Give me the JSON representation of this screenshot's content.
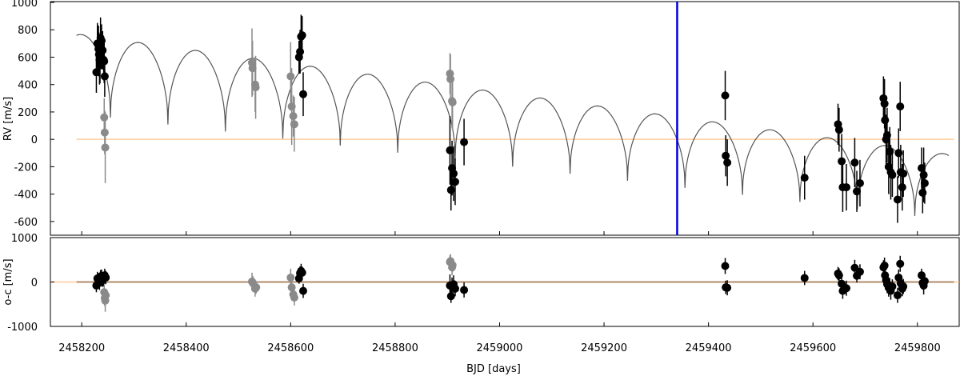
{
  "chart_data": {
    "type": "scatter",
    "xlabel": "BJD [days]",
    "x_ticks": [
      2458200,
      2458400,
      2458600,
      2458800,
      2459000,
      2459200,
      2459400,
      2459600,
      2459800
    ],
    "xlim": [
      2458140,
      2459880
    ],
    "vertical_marker_x": 2459340,
    "colors": {
      "series_black": "#000000",
      "series_gray": "#8a8a8a",
      "model": "#555555",
      "zero_line": "#ffcc99",
      "zero_line_residual": "#b08a6a",
      "marker_line": "#0000dd"
    },
    "panels": [
      {
        "name": "rv",
        "ylabel": "RV [m/s]",
        "ylim": [
          -700,
          1000
        ],
        "y_ticks": [
          1000,
          800,
          600,
          400,
          200,
          0,
          -200,
          -400,
          -600
        ],
        "model": {
          "x_start": 2458190,
          "x_end": 2459860,
          "period": 110,
          "peak_start": 770,
          "peak_end": -110,
          "dip_start": 190,
          "dip_end": -590
        },
        "series": [
          {
            "color": "gray",
            "points": [
              [
                2458243,
                160,
                140
              ],
              [
                2458244,
                50,
                160
              ],
              [
                2458245,
                -60,
                260
              ],
              [
                2458526,
                560,
                250
              ],
              [
                2458527,
                520,
                200
              ],
              [
                2458532,
                400,
                200
              ],
              [
                2458533,
                380,
                230
              ],
              [
                2458600,
                460,
                250
              ],
              [
                2458602,
                240,
                280
              ],
              [
                2458605,
                170,
                150
              ],
              [
                2458607,
                110,
                200
              ],
              [
                2458905,
                480,
                150
              ],
              [
                2458906,
                440,
                180
              ],
              [
                2458909,
                280,
                200
              ],
              [
                2458910,
                270,
                200
              ]
            ]
          },
          {
            "color": "black",
            "points": [
              [
                2458228,
                490,
                150
              ],
              [
                2458230,
                700,
                150
              ],
              [
                2458232,
                660,
                170
              ],
              [
                2458233,
                620,
                160
              ],
              [
                2458234,
                580,
                180
              ],
              [
                2458235,
                540,
                130
              ],
              [
                2458236,
                740,
                150
              ],
              [
                2458238,
                720,
                120
              ],
              [
                2458240,
                650,
                140
              ],
              [
                2458242,
                580,
                150
              ],
              [
                2458243,
                570,
                160
              ],
              [
                2458244,
                460,
                150
              ],
              [
                2458616,
                600,
                120
              ],
              [
                2458618,
                640,
                160
              ],
              [
                2458620,
                750,
                160
              ],
              [
                2458622,
                760,
                140
              ],
              [
                2458624,
                330,
                160
              ],
              [
                2458905,
                -80,
                250
              ],
              [
                2458907,
                -370,
                150
              ],
              [
                2458909,
                -210,
                200
              ],
              [
                2458912,
                -250,
                200
              ],
              [
                2458915,
                -310,
                170
              ],
              [
                2458932,
                -20,
                170
              ],
              [
                2459432,
                320,
                180
              ],
              [
                2459433,
                -120,
                150
              ],
              [
                2459436,
                -170,
                170
              ],
              [
                2459584,
                -280,
                160
              ],
              [
                2459648,
                110,
                150
              ],
              [
                2459650,
                70,
                160
              ],
              [
                2459655,
                -160,
                200
              ],
              [
                2459657,
                -350,
                180
              ],
              [
                2459664,
                -350,
                170
              ],
              [
                2459680,
                -170,
                180
              ],
              [
                2459684,
                -380,
                150
              ],
              [
                2459690,
                -320,
                170
              ],
              [
                2459735,
                300,
                160
              ],
              [
                2459737,
                260,
                180
              ],
              [
                2459738,
                140,
                170
              ],
              [
                2459740,
                0,
                180
              ],
              [
                2459742,
                30,
                200
              ],
              [
                2459745,
                -200,
                200
              ],
              [
                2459747,
                -90,
                180
              ],
              [
                2459749,
                -240,
                200
              ],
              [
                2459752,
                -260,
                160
              ],
              [
                2459762,
                -440,
                170
              ],
              [
                2459764,
                -100,
                180
              ],
              [
                2459767,
                240,
                180
              ],
              [
                2459768,
                -240,
                200
              ],
              [
                2459771,
                -350,
                170
              ],
              [
                2459773,
                -250,
                170
              ],
              [
                2459808,
                -210,
                150
              ],
              [
                2459810,
                -390,
                150
              ],
              [
                2459812,
                -260,
                200
              ],
              [
                2459814,
                -320,
                150
              ]
            ]
          }
        ]
      },
      {
        "name": "residuals",
        "ylabel": "o-c [m/s]",
        "ylim": [
          -1000,
          1000
        ],
        "y_ticks": [
          1000,
          0,
          -1000
        ],
        "series": [
          {
            "color": "gray",
            "points": [
              [
                2458243,
                -230,
                150
              ],
              [
                2458244,
                -360,
                180
              ],
              [
                2458245,
                -420,
                250
              ],
              [
                2458246,
                -300,
                140
              ],
              [
                2458526,
                10,
                200
              ],
              [
                2458528,
                -30,
                160
              ],
              [
                2458532,
                -150,
                180
              ],
              [
                2458534,
                -120,
                140
              ],
              [
                2458600,
                100,
                200
              ],
              [
                2458602,
                -120,
                200
              ],
              [
                2458605,
                -280,
                150
              ],
              [
                2458607,
                -350,
                180
              ],
              [
                2458905,
                450,
                150
              ],
              [
                2458906,
                470,
                160
              ],
              [
                2458909,
                330,
                180
              ],
              [
                2458910,
                380,
                150
              ]
            ]
          },
          {
            "color": "black",
            "points": [
              [
                2458228,
                -80,
                150
              ],
              [
                2458230,
                80,
                150
              ],
              [
                2458232,
                20,
                160
              ],
              [
                2458234,
                -20,
                160
              ],
              [
                2458236,
                120,
                150
              ],
              [
                2458238,
                140,
                140
              ],
              [
                2458240,
                40,
                150
              ],
              [
                2458242,
                70,
                160
              ],
              [
                2458244,
                150,
                150
              ],
              [
                2458246,
                100,
                150
              ],
              [
                2458616,
                80,
                120
              ],
              [
                2458618,
                200,
                150
              ],
              [
                2458620,
                250,
                160
              ],
              [
                2458622,
                210,
                140
              ],
              [
                2458624,
                -200,
                160
              ],
              [
                2458905,
                -80,
                250
              ],
              [
                2458907,
                -320,
                150
              ],
              [
                2458909,
                -100,
                200
              ],
              [
                2458912,
                -50,
                200
              ],
              [
                2458915,
                -150,
                170
              ],
              [
                2458932,
                -180,
                170
              ],
              [
                2459432,
                360,
                180
              ],
              [
                2459433,
                -120,
                150
              ],
              [
                2459436,
                -130,
                170
              ],
              [
                2459584,
                90,
                160
              ],
              [
                2459648,
                190,
                150
              ],
              [
                2459650,
                150,
                160
              ],
              [
                2459655,
                -40,
                200
              ],
              [
                2459657,
                -200,
                180
              ],
              [
                2459664,
                -140,
                170
              ],
              [
                2459680,
                320,
                180
              ],
              [
                2459684,
                140,
                150
              ],
              [
                2459690,
                230,
                170
              ],
              [
                2459735,
                330,
                160
              ],
              [
                2459737,
                370,
                180
              ],
              [
                2459738,
                150,
                170
              ],
              [
                2459740,
                40,
                180
              ],
              [
                2459742,
                -50,
                200
              ],
              [
                2459745,
                -130,
                200
              ],
              [
                2459747,
                -90,
                180
              ],
              [
                2459749,
                -200,
                200
              ],
              [
                2459752,
                -100,
                160
              ],
              [
                2459762,
                -300,
                170
              ],
              [
                2459764,
                100,
                180
              ],
              [
                2459767,
                410,
                180
              ],
              [
                2459768,
                -30,
                200
              ],
              [
                2459771,
                -150,
                170
              ],
              [
                2459773,
                -100,
                170
              ],
              [
                2459808,
                150,
                150
              ],
              [
                2459810,
                -20,
                150
              ],
              [
                2459812,
                -80,
                200
              ],
              [
                2459814,
                20,
                150
              ]
            ]
          }
        ]
      }
    ]
  }
}
